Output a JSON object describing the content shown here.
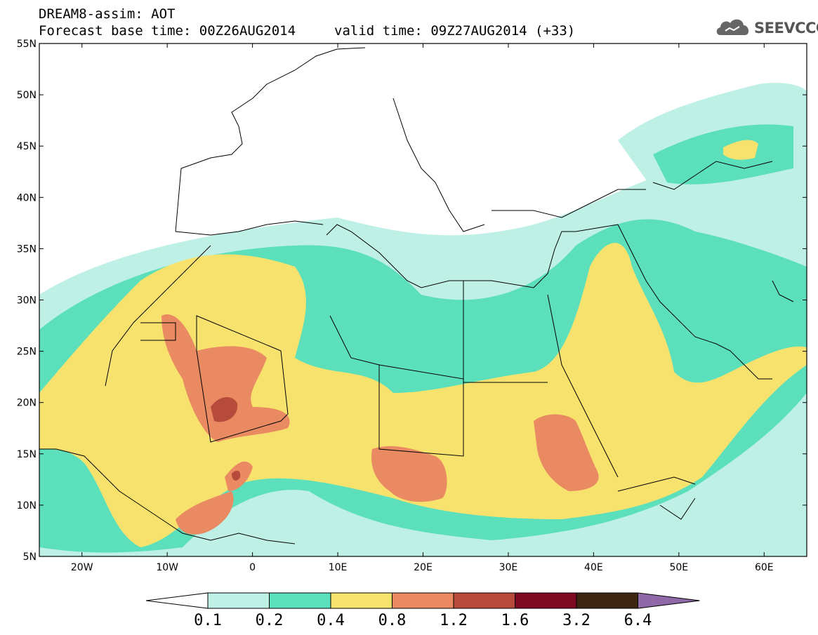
{
  "header": {
    "title": "DREAM8-assim: AOT",
    "base_time": "Forecast base time: 00Z26AUG2014",
    "valid_time": "valid time: 09Z27AUG2014 (+33)"
  },
  "logo": {
    "text": "SEEVCCC",
    "icon": "cloud-logo-icon"
  },
  "map": {
    "lon_range": [
      -25,
      65
    ],
    "lat_range": [
      5,
      55
    ],
    "lat_labels": [
      "55N",
      "50N",
      "45N",
      "40N",
      "35N",
      "30N",
      "25N",
      "20N",
      "15N",
      "10N",
      "5N"
    ],
    "lon_labels": [
      "20W",
      "10W",
      "0",
      "10E",
      "20E",
      "30E",
      "40E",
      "50E",
      "60E"
    ]
  },
  "colorbar": {
    "labels": [
      "0.1",
      "0.2",
      "0.4",
      "0.8",
      "1.2",
      "1.6",
      "3.2",
      "6.4"
    ],
    "colors": [
      "#ffffff",
      "#bff0e6",
      "#5ce0bc",
      "#f7e26e",
      "#e98a62",
      "#b64b3b",
      "#7d0a23",
      "#3e2412",
      "#8f68a8"
    ]
  }
}
